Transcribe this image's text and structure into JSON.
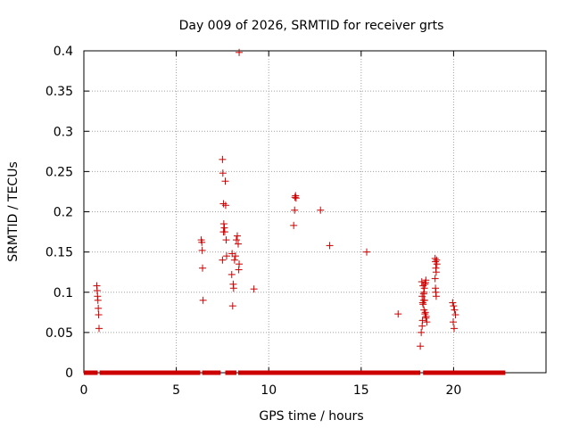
{
  "chart_data": {
    "type": "scatter",
    "title": "Day 009 of 2026, SRMTID for receiver grts",
    "xlabel": "GPS time / hours",
    "ylabel": "SRMTID / TECUs",
    "xlim": [
      0,
      25
    ],
    "ylim": [
      0,
      0.4
    ],
    "x_ticks": [
      0,
      5,
      10,
      15,
      20
    ],
    "y_ticks": [
      0,
      0.05,
      0.1,
      0.15,
      0.2,
      0.25,
      0.3,
      0.35,
      0.4
    ],
    "x_tick_labels": [
      "0",
      "5",
      "10",
      "15",
      "20"
    ],
    "y_tick_labels": [
      "0",
      "0.05",
      "0.1",
      "0.15",
      "0.2",
      "0.25",
      "0.3",
      "0.35",
      "0.4"
    ],
    "grid": true,
    "marker": "+",
    "color": "#cc0000",
    "baseline_segments": [
      [
        0.0,
        0.75
      ],
      [
        0.85,
        6.3
      ],
      [
        6.4,
        7.4
      ],
      [
        7.65,
        8.25
      ],
      [
        8.35,
        18.2
      ],
      [
        18.35,
        22.8
      ]
    ],
    "baseline_value": 0,
    "series": [
      {
        "name": "SRMTID",
        "x": [
          0.7,
          0.72,
          0.74,
          0.76,
          0.78,
          0.8,
          0.82,
          6.35,
          6.38,
          6.4,
          6.42,
          6.45,
          7.5,
          7.52,
          7.55,
          7.57,
          7.6,
          7.62,
          7.65,
          7.67,
          7.7,
          7.72,
          7.5,
          7.55,
          8.0,
          8.05,
          8.1,
          8.15,
          8.2,
          8.25,
          8.3,
          8.35,
          8.4,
          8.02,
          8.08,
          8.38,
          9.2,
          11.35,
          11.4,
          11.42,
          11.45,
          11.48,
          12.8,
          13.3,
          15.3,
          17.0,
          18.2,
          18.25,
          18.3,
          18.32,
          18.35,
          18.38,
          18.4,
          18.42,
          18.45,
          18.48,
          18.5,
          18.52,
          18.55,
          18.3,
          18.35,
          18.4,
          18.45,
          18.5,
          18.28,
          18.33,
          18.38,
          18.43,
          18.47,
          19.0,
          19.02,
          19.04,
          19.06,
          19.0,
          19.02,
          19.04,
          19.06,
          19.08,
          19.1,
          19.95,
          20.0,
          20.05,
          20.1,
          19.98,
          20.03
        ],
        "y": [
          0.108,
          0.102,
          0.095,
          0.09,
          0.08,
          0.072,
          0.055,
          0.165,
          0.162,
          0.152,
          0.13,
          0.09,
          0.265,
          0.248,
          0.21,
          0.185,
          0.18,
          0.175,
          0.238,
          0.208,
          0.165,
          0.145,
          0.14,
          0.175,
          0.122,
          0.083,
          0.105,
          0.14,
          0.145,
          0.165,
          0.17,
          0.16,
          0.135,
          0.148,
          0.11,
          0.128,
          0.104,
          0.183,
          0.202,
          0.218,
          0.22,
          0.217,
          0.202,
          0.158,
          0.15,
          0.073,
          0.033,
          0.05,
          0.058,
          0.065,
          0.085,
          0.09,
          0.1,
          0.105,
          0.11,
          0.112,
          0.115,
          0.07,
          0.063,
          0.095,
          0.108,
          0.078,
          0.073,
          0.068,
          0.113,
          0.087,
          0.098,
          0.09,
          0.075,
          0.142,
          0.138,
          0.13,
          0.125,
          0.117,
          0.105,
          0.1,
          0.095,
          0.14,
          0.135,
          0.087,
          0.083,
          0.078,
          0.072,
          0.063,
          0.055
        ]
      },
      {
        "name": "outlier",
        "x": [
          8.4
        ],
        "y": [
          0.398
        ]
      }
    ]
  }
}
